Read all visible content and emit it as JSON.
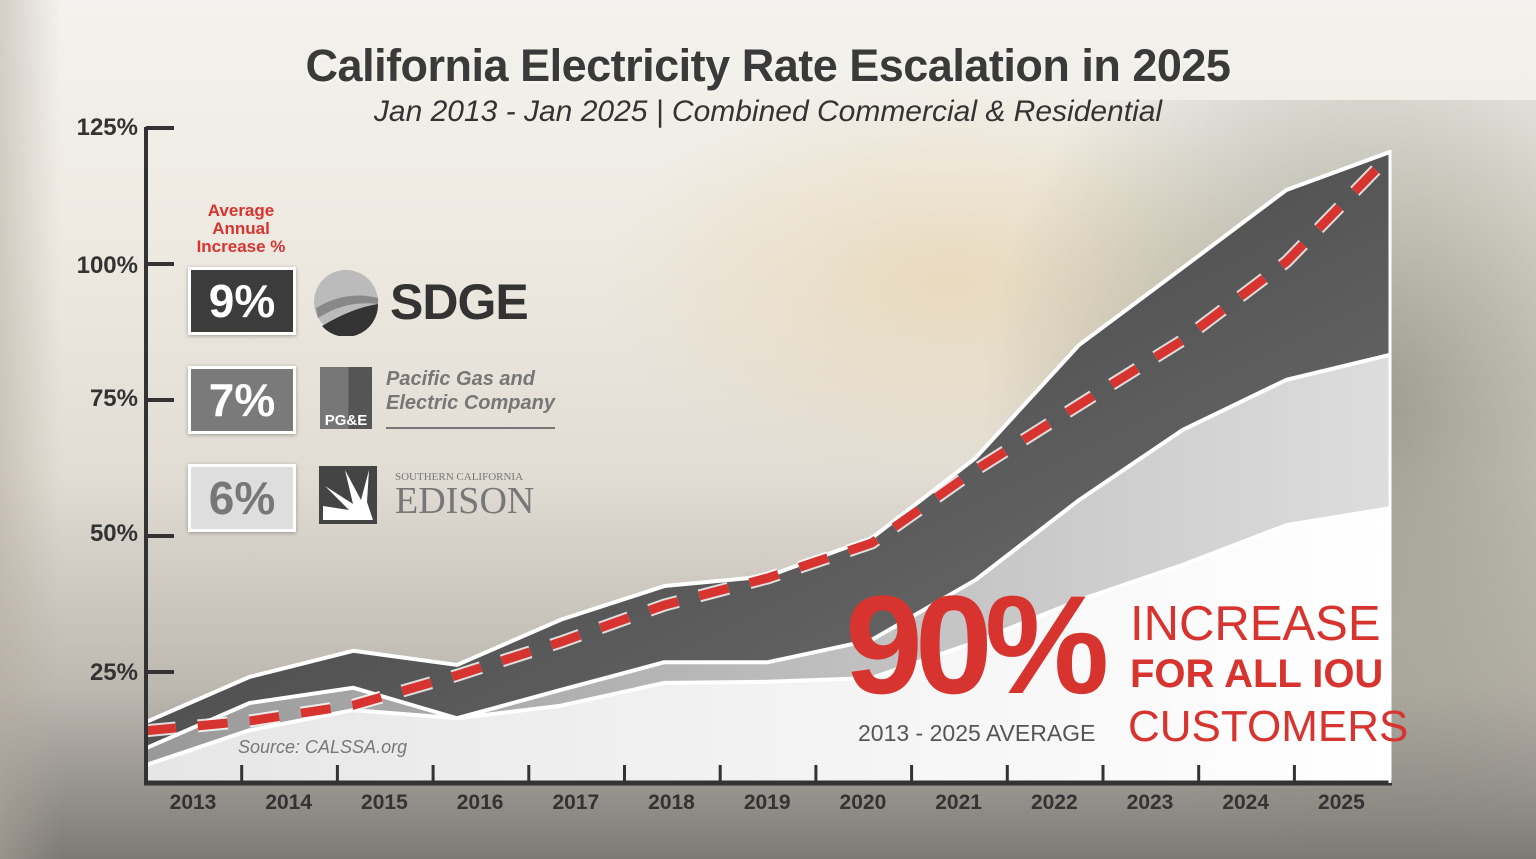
{
  "chart_data": {
    "type": "area",
    "title": "California Electricity Rate Escalation in 2025",
    "subtitle": "Jan 2013 - Jan 2025  |  Combined Commercial & Residential",
    "x": [
      "2013",
      "2014",
      "2015",
      "2016",
      "2017",
      "2018",
      "2019",
      "2020",
      "2021",
      "2022",
      "2023",
      "2024",
      "2025"
    ],
    "ylim": [
      0,
      125
    ],
    "yticks": [
      "125%",
      "100%",
      "75%",
      "50%",
      "25%"
    ],
    "ytick_values": [
      125,
      100,
      75,
      50,
      25
    ],
    "series": [
      {
        "name": "SDGE",
        "values": [
          15.8,
          24.1,
          28.9,
          26.3,
          34.6,
          40.8,
          42.6,
          49.6,
          64.3,
          85.1,
          99.3,
          113.6,
          120.6
        ],
        "color": "#3c3c3c"
      },
      {
        "name": "Pacific Gas and Electric Company",
        "values": [
          11.0,
          19.3,
          22.1,
          16.5,
          21.7,
          26.8,
          26.8,
          30.9,
          41.9,
          56.6,
          69.5,
          78.7,
          83.3
        ],
        "color": "#8a8a8a"
      },
      {
        "name": "Southern California Edison",
        "values": [
          7.9,
          14.3,
          18.0,
          16.5,
          18.8,
          23.0,
          23.2,
          23.9,
          30.5,
          38.2,
          44.7,
          52.0,
          55.1
        ],
        "color": "#dcdcdc"
      },
      {
        "values": [
          14.2,
          16.0,
          18.9,
          24.4,
          30.5,
          37.3,
          42.3,
          48.7,
          62.1,
          74.1,
          86.0,
          100.4,
          120.0
        ],
        "color": "#d7342f",
        "style": "dashed"
      }
    ],
    "grid": false
  },
  "legend": {
    "heading": "Average Annual Increase %",
    "items": [
      {
        "pct": "9%",
        "logo": "SDGE",
        "box_color": "#3c3c3c",
        "text_color": "#ffffff"
      },
      {
        "pct": "7%",
        "logo_mark": "PG&E",
        "logo": "Pacific Gas and Electric Company",
        "line1": "Pacific Gas and",
        "line2": "Electric Company",
        "box_color": "#7a7a7a",
        "text_color": "#ffffff"
      },
      {
        "pct": "6%",
        "logo_small": "SOUTHERN CALIFORNIA",
        "logo": "EDISON",
        "box_color": "#dedede",
        "text_color": "#777777"
      }
    ]
  },
  "source": "Source: CALSSA.org",
  "callout": {
    "big": "90%",
    "range": "2013 - 2025 AVERAGE",
    "line1": "INCREASE",
    "line2": "FOR ALL IOU",
    "line3": "CUSTOMERS",
    "color": "#d7342f"
  }
}
